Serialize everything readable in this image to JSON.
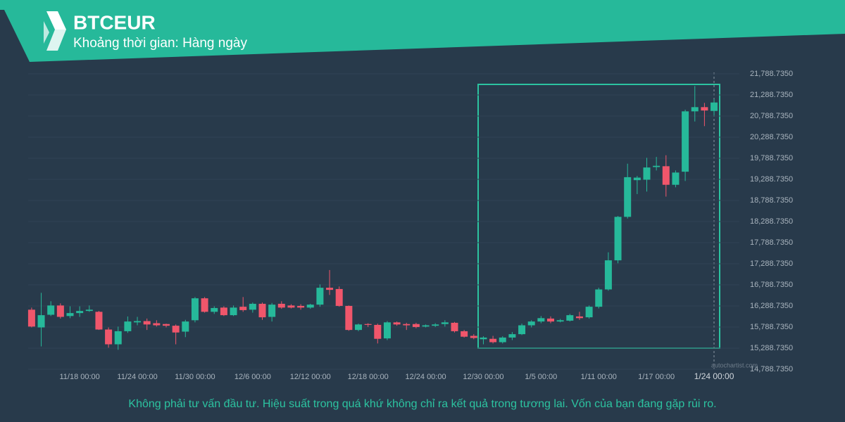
{
  "header": {
    "title": "BTCEUR",
    "subtitle": "Khoảng thời gian: Hàng ngày"
  },
  "chart_data": {
    "type": "candlestick",
    "up_color": "#26b99a",
    "down_color": "#f0566b",
    "grid": true,
    "categories": [
      null,
      null,
      null,
      null,
      null,
      "11/18 00:00",
      null,
      null,
      null,
      null,
      null,
      "11/24 00:00",
      null,
      null,
      null,
      null,
      null,
      "11/30 00:00",
      null,
      null,
      null,
      null,
      null,
      "12/6 00:00",
      null,
      null,
      null,
      null,
      null,
      "12/12 00:00",
      null,
      null,
      null,
      null,
      null,
      "12/18 00:00",
      null,
      null,
      null,
      null,
      null,
      "12/24 00:00",
      null,
      null,
      null,
      null,
      null,
      "12/30 00:00",
      null,
      null,
      null,
      null,
      null,
      "1/5 00:00",
      null,
      null,
      null,
      null,
      null,
      "1/11 00:00",
      null,
      null,
      null,
      null,
      null,
      "1/17 00:00",
      null,
      null,
      null,
      null,
      null,
      "1/24 00:00"
    ],
    "open": [
      16200,
      15780,
      16080,
      16300,
      16050,
      16120,
      16170,
      16150,
      15730,
      15380,
      15690,
      15900,
      15930,
      15880,
      15860,
      15820,
      15680,
      15950,
      16470,
      16150,
      16250,
      16070,
      16270,
      16200,
      16340,
      16030,
      16340,
      16300,
      16290,
      16250,
      16320,
      16720,
      16690,
      16290,
      15720,
      15860,
      15840,
      15520,
      15900,
      15860,
      15860,
      15800,
      15820,
      15860,
      15890,
      15690,
      15580,
      15500,
      15510,
      15430,
      15540,
      15620,
      15830,
      15920,
      15990,
      15920,
      15940,
      16040,
      16020,
      16270,
      16680,
      17370,
      18400,
      19270,
      19280,
      19580,
      19600,
      19160,
      19470,
      20900,
      21000,
      20910
    ],
    "high": [
      16250,
      16600,
      16400,
      16350,
      16280,
      16280,
      16300,
      16170,
      15780,
      15800,
      16040,
      16030,
      15990,
      15950,
      15870,
      15850,
      15960,
      16500,
      16500,
      16280,
      16280,
      16300,
      16500,
      16370,
      16370,
      16360,
      16400,
      16330,
      16330,
      16340,
      16800,
      17140,
      16750,
      16300,
      15870,
      15880,
      15870,
      15930,
      15920,
      15890,
      15890,
      15850,
      15880,
      15950,
      15910,
      15720,
      15620,
      15570,
      15580,
      15570,
      15670,
      15870,
      15950,
      16050,
      16040,
      15980,
      16100,
      16150,
      16300,
      16720,
      17560,
      18420,
      19660,
      19370,
      19800,
      19820,
      19860,
      19500,
      20940,
      21500,
      21100,
      21190
    ],
    "low": [
      15780,
      15330,
      16050,
      15990,
      16000,
      16030,
      16150,
      15720,
      15300,
      15250,
      15650,
      15830,
      15720,
      15800,
      15780,
      15380,
      15550,
      15900,
      16130,
      16100,
      16050,
      16050,
      16150,
      16130,
      15960,
      15920,
      16220,
      16230,
      16200,
      16220,
      16270,
      16550,
      16270,
      15700,
      15690,
      15790,
      15400,
      15480,
      15820,
      15720,
      15760,
      15780,
      15790,
      15800,
      15660,
      15540,
      15500,
      15380,
      15400,
      15400,
      15480,
      15600,
      15780,
      15880,
      15880,
      15900,
      15920,
      15960,
      15990,
      16230,
      16650,
      17300,
      18360,
      18940,
      19000,
      19500,
      18880,
      19100,
      19250,
      20660,
      20550,
      20800
    ],
    "close": [
      15800,
      16070,
      16300,
      16030,
      16120,
      16170,
      16200,
      15730,
      15380,
      15690,
      15920,
      15930,
      15850,
      15830,
      15820,
      15660,
      15920,
      16470,
      16150,
      16240,
      16070,
      16250,
      16190,
      16340,
      16020,
      16320,
      16250,
      16250,
      16250,
      16320,
      16720,
      16670,
      16290,
      15720,
      15850,
      15840,
      15510,
      15900,
      15850,
      15830,
      15790,
      15830,
      15850,
      15900,
      15690,
      15560,
      15530,
      15540,
      15430,
      15540,
      15620,
      15830,
      15920,
      16000,
      15920,
      15950,
      16070,
      16000,
      16270,
      16680,
      17370,
      18400,
      19340,
      19330,
      19570,
      19610,
      19160,
      19450,
      20900,
      21000,
      20920,
      21110
    ],
    "ylim": [
      14788.735,
      21788.735
    ],
    "yticks": [
      {
        "value": 14788.735,
        "label": "14,788.7350"
      },
      {
        "value": 15288.735,
        "label": "15,288.7350"
      },
      {
        "value": 15788.735,
        "label": "15,788.7350"
      },
      {
        "value": 16288.735,
        "label": "16,288.7350"
      },
      {
        "value": 16788.735,
        "label": "16,788.7350"
      },
      {
        "value": 17288.735,
        "label": "17,288.7350"
      },
      {
        "value": 17788.735,
        "label": "17,788.7350"
      },
      {
        "value": 18288.735,
        "label": "18,288.7350"
      },
      {
        "value": 18788.735,
        "label": "18,788.7350"
      },
      {
        "value": 19288.735,
        "label": "19,288.7350"
      },
      {
        "value": 19788.735,
        "label": "19,788.7350"
      },
      {
        "value": 20288.735,
        "label": "20,288.7350"
      },
      {
        "value": 20788.735,
        "label": "20,788.7350"
      },
      {
        "value": 21288.735,
        "label": "21,288.7350"
      },
      {
        "value": 21788.735,
        "label": "21,788.7350"
      }
    ],
    "watermark": "autochartist.com",
    "disclaimer": "Không phải tư vấn đầu tư. Hiệu suất trong quá khứ không chỉ ra kết quả trong tương lai. Vốn của bạn đang gặp rủi ro."
  }
}
